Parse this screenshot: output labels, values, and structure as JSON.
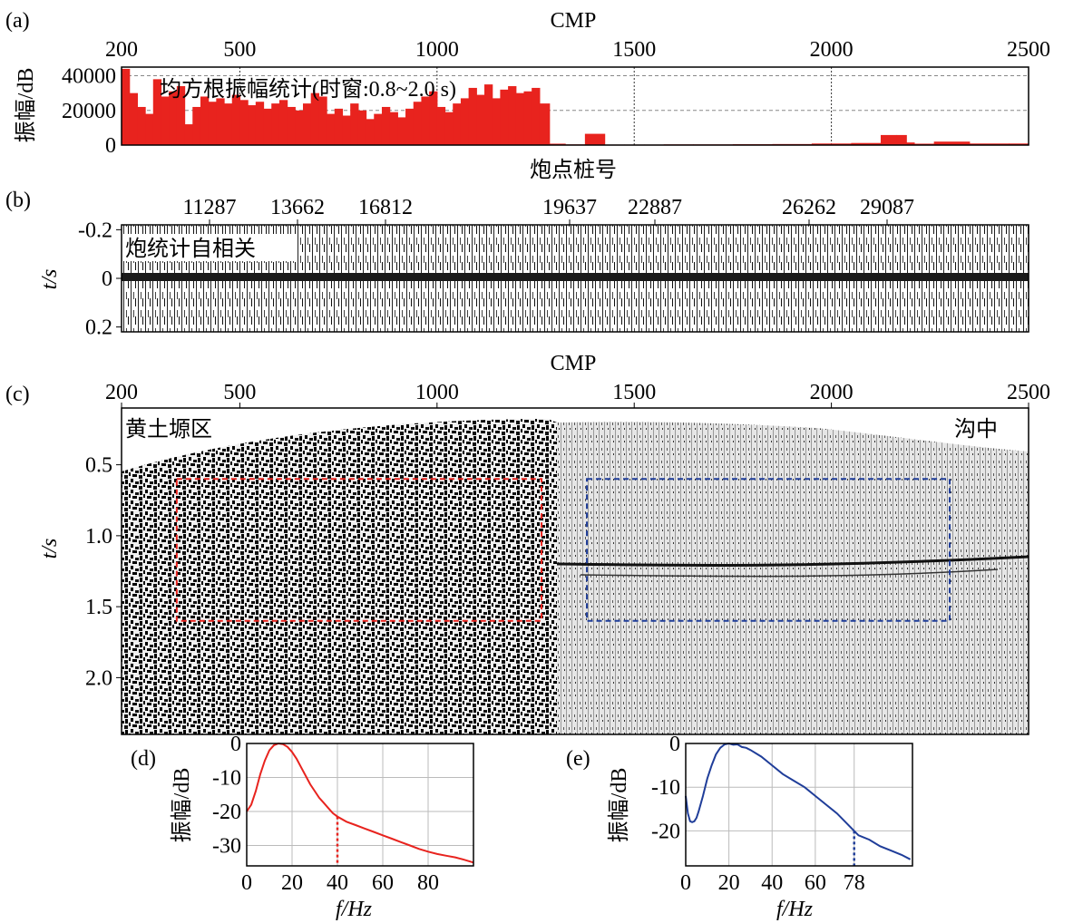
{
  "figure": {
    "panels": {
      "a": {
        "label": "(a)",
        "top_axis_title": "CMP",
        "ylabel": "振幅/dB",
        "annotation": "均方根振幅统计(时窗:0.8~2.0 s)"
      },
      "b": {
        "label": "(b)",
        "top_axis_title": "炮点桩号",
        "ylabel": "t/s",
        "annotation": "炮统计自相关"
      },
      "c": {
        "label": "(c)",
        "top_axis_title": "CMP",
        "ylabel": "t/s",
        "left_annotation": "黄土塬区",
        "right_annotation": "沟中"
      },
      "d": {
        "label": "(d)",
        "xlabel": "f/Hz",
        "ylabel": "振幅/dB",
        "marker_label": "40"
      },
      "e": {
        "label": "(e)",
        "xlabel": "f/Hz",
        "ylabel": "振幅/dB",
        "marker_label": "78"
      }
    }
  },
  "chart_data": [
    {
      "id": "a",
      "type": "bar",
      "x_ticks": [
        200,
        500,
        1000,
        1500,
        2000,
        2500
      ],
      "xlim": [
        200,
        2500
      ],
      "y_ticks": [
        0,
        20000,
        40000
      ],
      "ylim": [
        0,
        45000
      ],
      "grid": true,
      "color": "#e8231e",
      "x": [
        210,
        230,
        250,
        270,
        290,
        310,
        330,
        350,
        370,
        390,
        410,
        430,
        450,
        470,
        490,
        510,
        530,
        550,
        570,
        590,
        610,
        630,
        650,
        670,
        690,
        710,
        730,
        750,
        770,
        790,
        810,
        830,
        850,
        870,
        890,
        910,
        930,
        950,
        970,
        990,
        1010,
        1030,
        1050,
        1070,
        1090,
        1110,
        1130,
        1150,
        1170,
        1190,
        1210,
        1230,
        1250,
        1270,
        1300,
        1350,
        1400,
        1450,
        1500,
        1550,
        1600,
        1700,
        1800,
        1900,
        2000,
        2100,
        2150,
        2180,
        2200,
        2220,
        2300,
        2400,
        2500
      ],
      "values": [
        44000,
        30000,
        22000,
        18000,
        38000,
        28000,
        31000,
        34000,
        12000,
        22000,
        28000,
        25000,
        27000,
        24000,
        29000,
        26000,
        23000,
        25000,
        21000,
        24000,
        26000,
        22000,
        20000,
        24000,
        30000,
        28000,
        18000,
        21000,
        17000,
        24000,
        20000,
        15000,
        18000,
        22000,
        19000,
        16000,
        21000,
        25000,
        28000,
        31000,
        22000,
        19000,
        24000,
        27000,
        33000,
        29000,
        35000,
        27000,
        32000,
        34000,
        30000,
        31000,
        33000,
        24000,
        800,
        400,
        6500,
        300,
        300,
        300,
        400,
        400,
        500,
        600,
        900,
        1200,
        5800,
        5800,
        1500,
        800,
        2000,
        900,
        900
      ]
    },
    {
      "id": "b",
      "type": "heatmap",
      "x_tick_labels": [
        "11287",
        "13662",
        "16812",
        "19637",
        "22887",
        "26262",
        "29087"
      ],
      "y_ticks": [
        -0.2,
        0,
        0.2
      ],
      "ylim": [
        -0.22,
        0.22
      ]
    },
    {
      "id": "c",
      "type": "heatmap",
      "x_ticks": [
        200,
        500,
        1000,
        1500,
        2000,
        2500
      ],
      "xlim": [
        200,
        2500
      ],
      "y_ticks": [
        0.5,
        1.0,
        1.5,
        2.0
      ],
      "ylim": [
        0.1,
        2.4
      ],
      "regions": [
        {
          "name": "red-window",
          "x": [
            340,
            1265
          ],
          "t": [
            0.6,
            1.6
          ],
          "color": "#e8231e"
        },
        {
          "name": "blue-window",
          "x": [
            1380,
            2300
          ],
          "t": [
            0.6,
            1.6
          ],
          "color": "#1f3d99"
        }
      ],
      "reflector_t": 1.15
    },
    {
      "id": "d",
      "type": "line",
      "x_ticks": [
        0,
        20,
        40,
        60,
        80
      ],
      "xlim": [
        0,
        100
      ],
      "y_ticks": [
        0,
        -10,
        -20,
        -30
      ],
      "ylim": [
        -36,
        0
      ],
      "grid": true,
      "color": "#e8231e",
      "series": [
        {
          "x": [
            0,
            2,
            4,
            6,
            8,
            10,
            12,
            14,
            16,
            18,
            20,
            22,
            24,
            26,
            28,
            30,
            32,
            34,
            36,
            38,
            40,
            44,
            48,
            52,
            56,
            60,
            64,
            68,
            72,
            76,
            80,
            84,
            88,
            92,
            96,
            100
          ],
          "values": [
            -20,
            -18,
            -14,
            -9,
            -5,
            -2,
            -0.5,
            0,
            -0.2,
            -1,
            -2.5,
            -4.5,
            -7,
            -9.5,
            -12,
            -14,
            -16,
            -17.5,
            -19,
            -20.5,
            -21.5,
            -23,
            -24,
            -25,
            -26,
            -27,
            -28,
            -29,
            -30,
            -31,
            -31.8,
            -32.5,
            -33,
            -33.5,
            -34.2,
            -35
          ]
        }
      ],
      "marker_x": 40,
      "marker_y": -21.5
    },
    {
      "id": "e",
      "type": "line",
      "x_ticks": [
        0,
        20,
        40,
        60,
        78
      ],
      "xlim": [
        0,
        105
      ],
      "y_ticks": [
        0,
        -10,
        -20
      ],
      "ylim": [
        -28,
        0
      ],
      "grid": true,
      "color": "#1f3d99",
      "series": [
        {
          "x": [
            0,
            1,
            2,
            3,
            4,
            5,
            6,
            8,
            10,
            12,
            14,
            16,
            18,
            20,
            22,
            24,
            26,
            28,
            30,
            35,
            40,
            45,
            50,
            55,
            60,
            65,
            70,
            75,
            78,
            80,
            85,
            90,
            95,
            100,
            104
          ],
          "values": [
            -12,
            -16,
            -17.8,
            -18,
            -17.8,
            -17,
            -15.5,
            -12,
            -8,
            -5,
            -2.5,
            -1,
            -0.2,
            0,
            -0.3,
            -0.2,
            -0.8,
            -1,
            -1.5,
            -3,
            -5,
            -7,
            -8.5,
            -10,
            -12,
            -14,
            -16,
            -18.5,
            -20,
            -21,
            -22,
            -23.5,
            -24.5,
            -25.5,
            -26.5
          ]
        }
      ],
      "marker_x": 78,
      "marker_y": -20
    }
  ]
}
